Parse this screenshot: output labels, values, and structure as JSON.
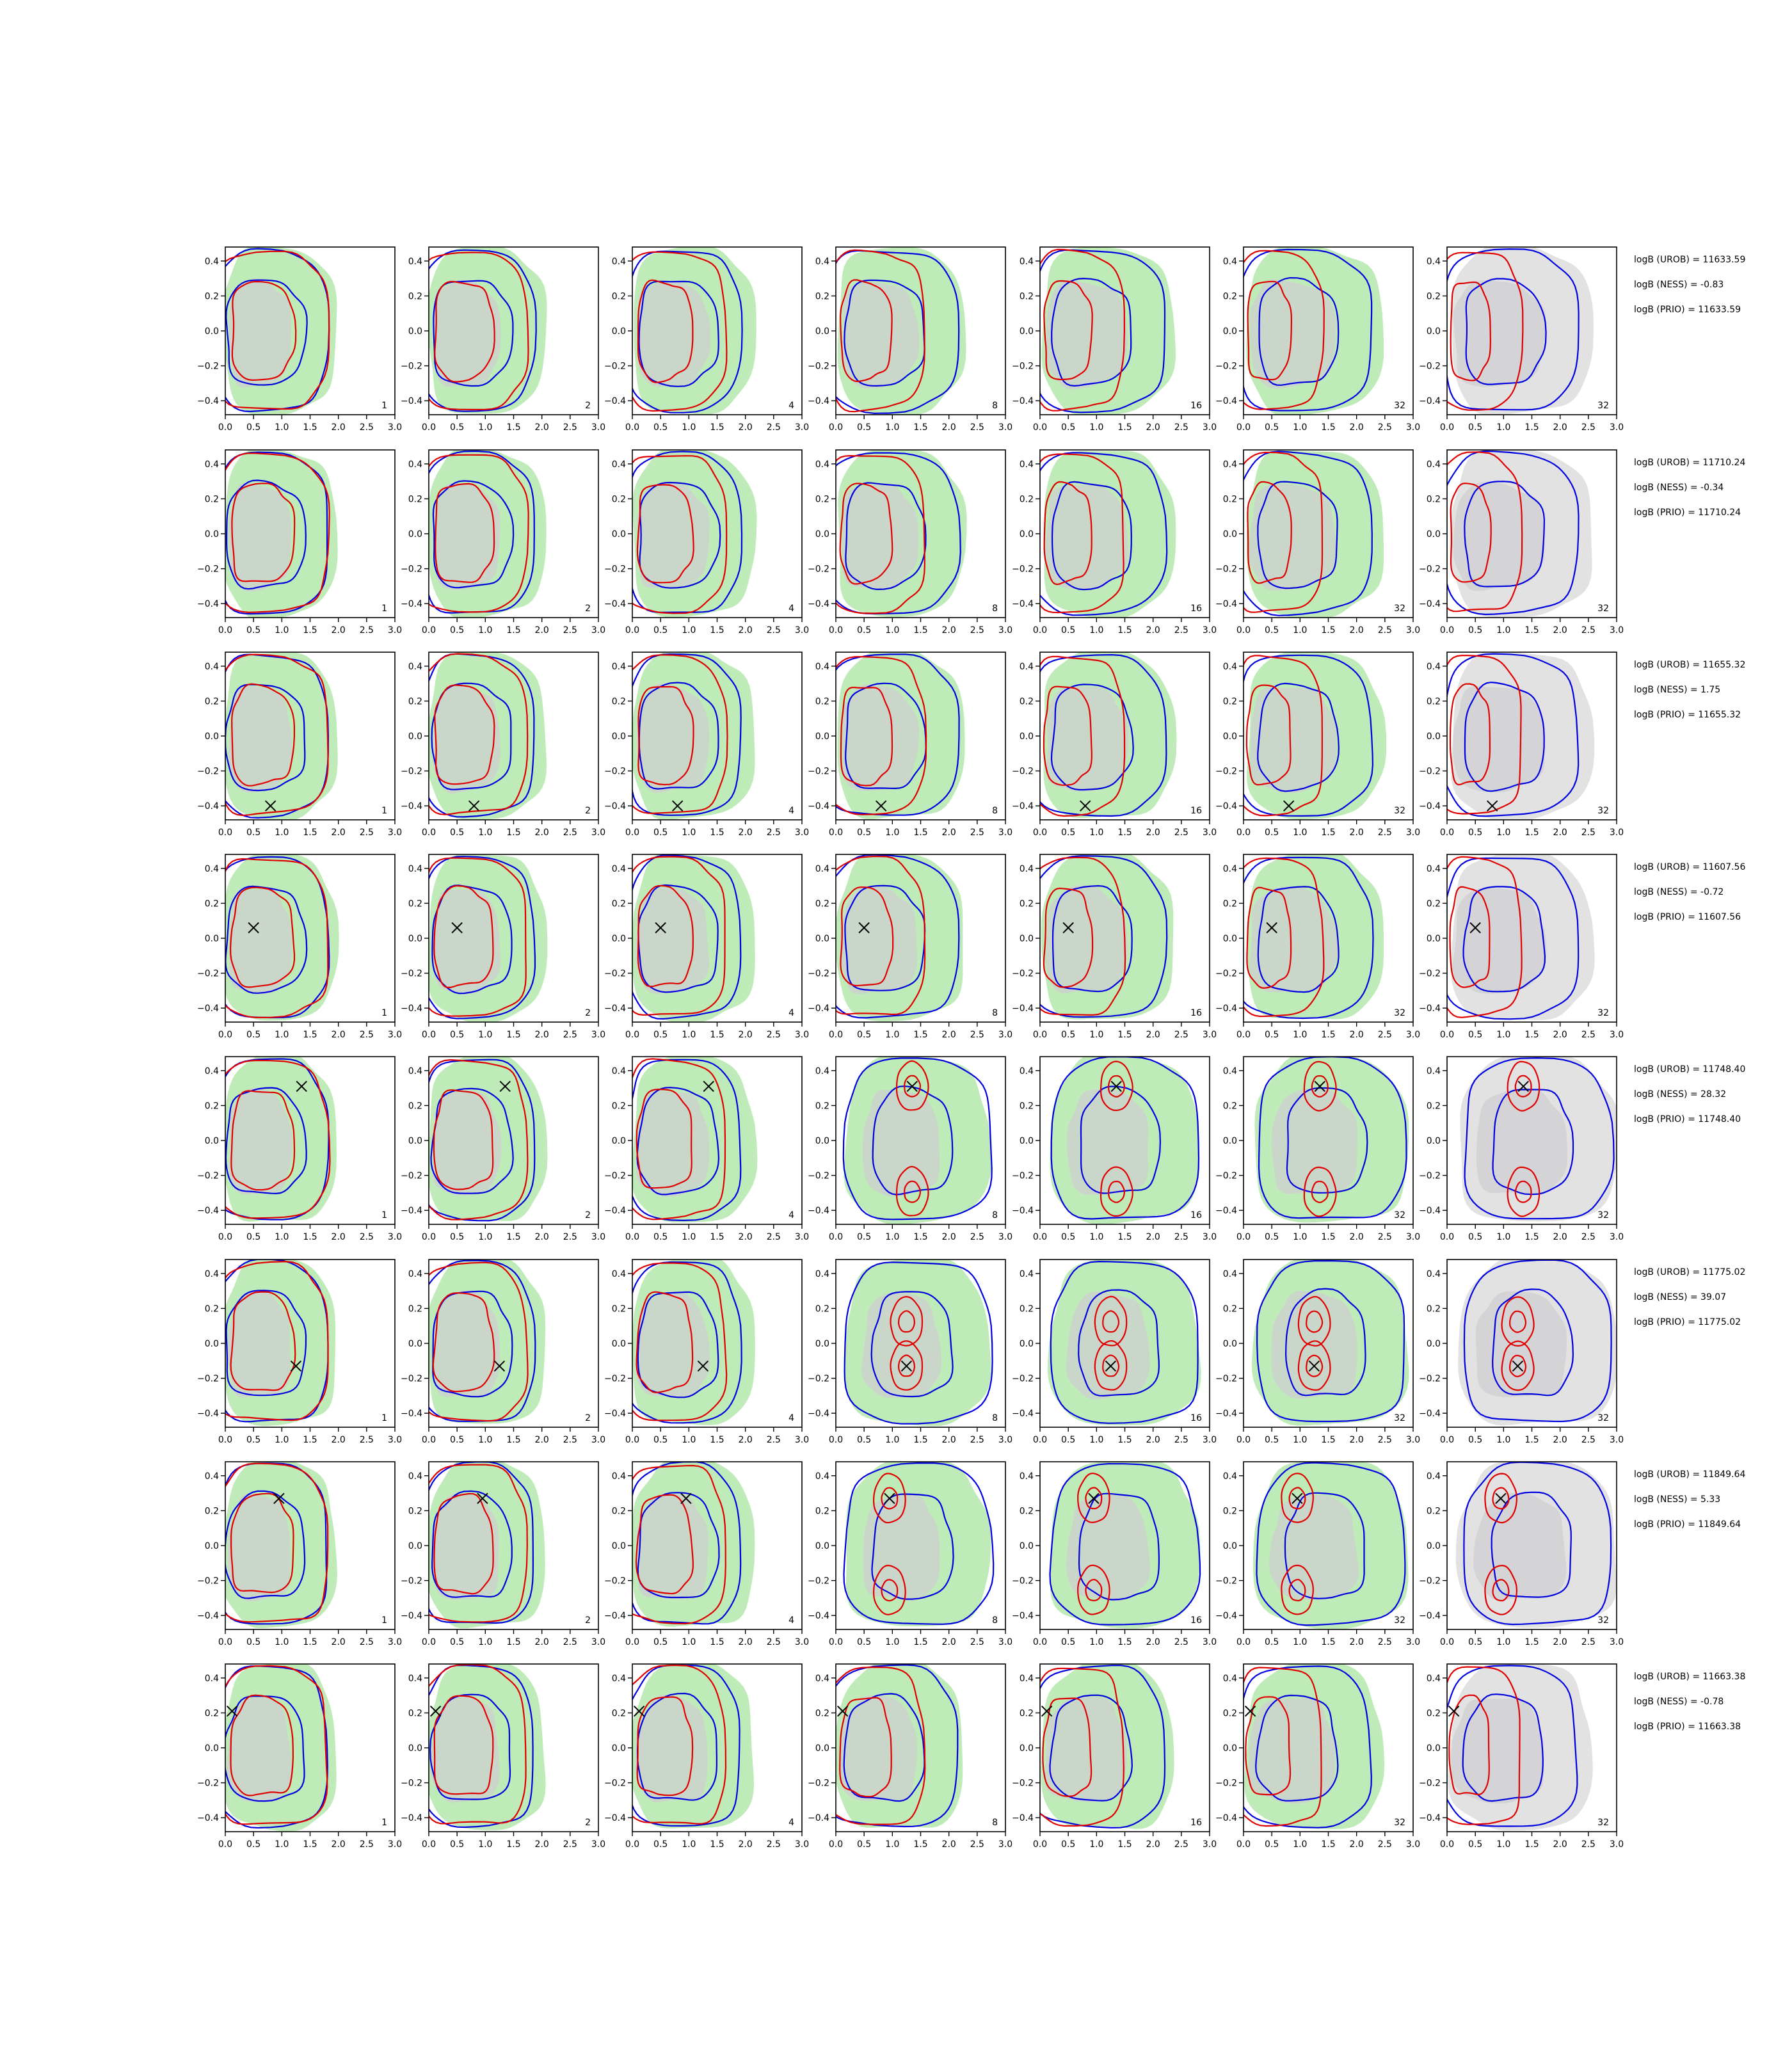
{
  "figure": {
    "columns": 7,
    "panel_numbers": [
      "1",
      "2",
      "4",
      "8",
      "16",
      "32",
      "32"
    ],
    "x_tick_labels": [
      "0.0",
      "0.5",
      "1.0",
      "1.5",
      "2.0",
      "2.5",
      "3.0"
    ],
    "y_tick_labels": [
      "0.4",
      "0.2",
      "0.0",
      "−0.2",
      "−0.4"
    ],
    "colors": {
      "fill_green": "#a8e4a0",
      "fill_gray": "#cfcfd1",
      "contour_red": "#e00000",
      "contour_blue": "#0000e0",
      "marker": "#000000"
    }
  },
  "chart_data": {
    "type": "contour",
    "xlim": [
      0.0,
      3.0
    ],
    "ylim": [
      -0.48,
      0.48
    ],
    "xticks": [
      0.0,
      0.5,
      1.0,
      1.5,
      2.0,
      2.5,
      3.0
    ],
    "yticks": [
      0.4,
      0.2,
      0.0,
      -0.2,
      -0.4
    ],
    "rows": [
      {
        "stats": [
          "logB (UROB) = 11633.59",
          "logB (NESS) = -0.83",
          "logB (PRIO) = 11633.59"
        ],
        "marker": null,
        "bimodal": false
      },
      {
        "stats": [
          "logB (UROB) = 11710.24",
          "logB (NESS) = -0.34",
          "logB (PRIO) = 11710.24"
        ],
        "marker": null,
        "bimodal": false
      },
      {
        "stats": [
          "logB (UROB) = 11655.32",
          "logB (NESS) = 1.75",
          "logB (PRIO) = 11655.32"
        ],
        "marker": [
          0.8,
          -0.4
        ],
        "bimodal": false
      },
      {
        "stats": [
          "logB (UROB) = 11607.56",
          "logB (NESS) = -0.72",
          "logB (PRIO) = 11607.56"
        ],
        "marker": [
          0.5,
          0.06
        ],
        "bimodal": false
      },
      {
        "stats": [
          "logB (UROB) = 11748.40",
          "logB (NESS) = 28.32",
          "logB (PRIO) = 11748.40"
        ],
        "marker": [
          1.35,
          0.31
        ],
        "bimodal": true
      },
      {
        "stats": [
          "logB (UROB) = 11775.02",
          "logB (NESS) = 39.07",
          "logB (PRIO) = 11775.02"
        ],
        "marker": [
          1.25,
          -0.13
        ],
        "bimodal": true
      },
      {
        "stats": [
          "logB (UROB) = 11849.64",
          "logB (NESS) = 5.33",
          "logB (PRIO) = 11849.64"
        ],
        "marker": [
          0.95,
          0.27
        ],
        "bimodal": true
      },
      {
        "stats": [
          "logB (UROB) = 11663.38",
          "logB (NESS) = -0.78",
          "logB (PRIO) = 11663.38"
        ],
        "marker": [
          0.12,
          0.21
        ],
        "bimodal": false
      }
    ]
  }
}
